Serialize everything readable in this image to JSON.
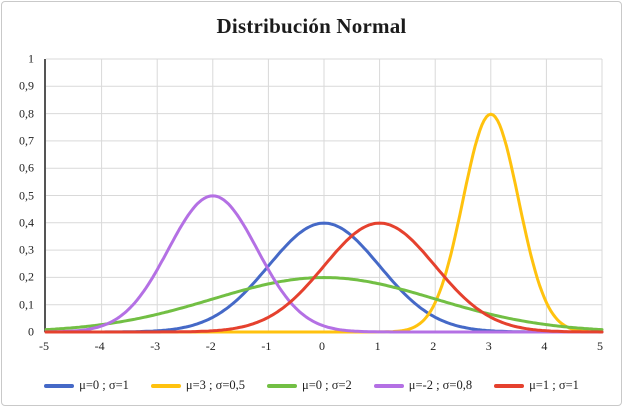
{
  "title": "Distribución Normal",
  "colors": {
    "grid": "#d9d9d9",
    "axis": "#555555",
    "text": "#222222",
    "frame_border": "#c9c9c9",
    "background": "#ffffff"
  },
  "chart_data": {
    "type": "line",
    "title": "Distribución Normal",
    "xlabel": "",
    "ylabel": "",
    "xlim": [
      -5,
      5
    ],
    "ylim": [
      0,
      1
    ],
    "grid": true,
    "legend_position": "bottom",
    "x_ticks": [
      "-5",
      "-4",
      "-3",
      "-2",
      "-1",
      "0",
      "1",
      "2",
      "3",
      "4",
      "5"
    ],
    "y_ticks_top_to_bottom": [
      "1",
      "0,9",
      "0,8",
      "0,7",
      "0,6",
      "0,5",
      "0,4",
      "0,3",
      "0,2",
      "0,1",
      "0"
    ],
    "curve_kind": "normal_pdf",
    "series": [
      {
        "name": "μ=0 ; σ=1",
        "mu": 0,
        "sigma": 1,
        "peak_x": 0,
        "peak_y": 0.4,
        "color": "#4569c7"
      },
      {
        "name": "μ=3 ; σ=0,5",
        "mu": 3,
        "sigma": 0.5,
        "peak_x": 3,
        "peak_y": 0.8,
        "color": "#ffc20e"
      },
      {
        "name": "μ=0 ; σ=2",
        "mu": 0,
        "sigma": 2,
        "peak_x": 0,
        "peak_y": 0.2,
        "color": "#72bf44"
      },
      {
        "name": "μ=-2 ; σ=0,8",
        "mu": -2,
        "sigma": 0.8,
        "peak_x": -2,
        "peak_y": 0.5,
        "color": "#b470e4"
      },
      {
        "name": "μ=1 ; σ=1",
        "mu": 1,
        "sigma": 1,
        "peak_x": 1,
        "peak_y": 0.4,
        "color": "#e5412e"
      }
    ]
  }
}
